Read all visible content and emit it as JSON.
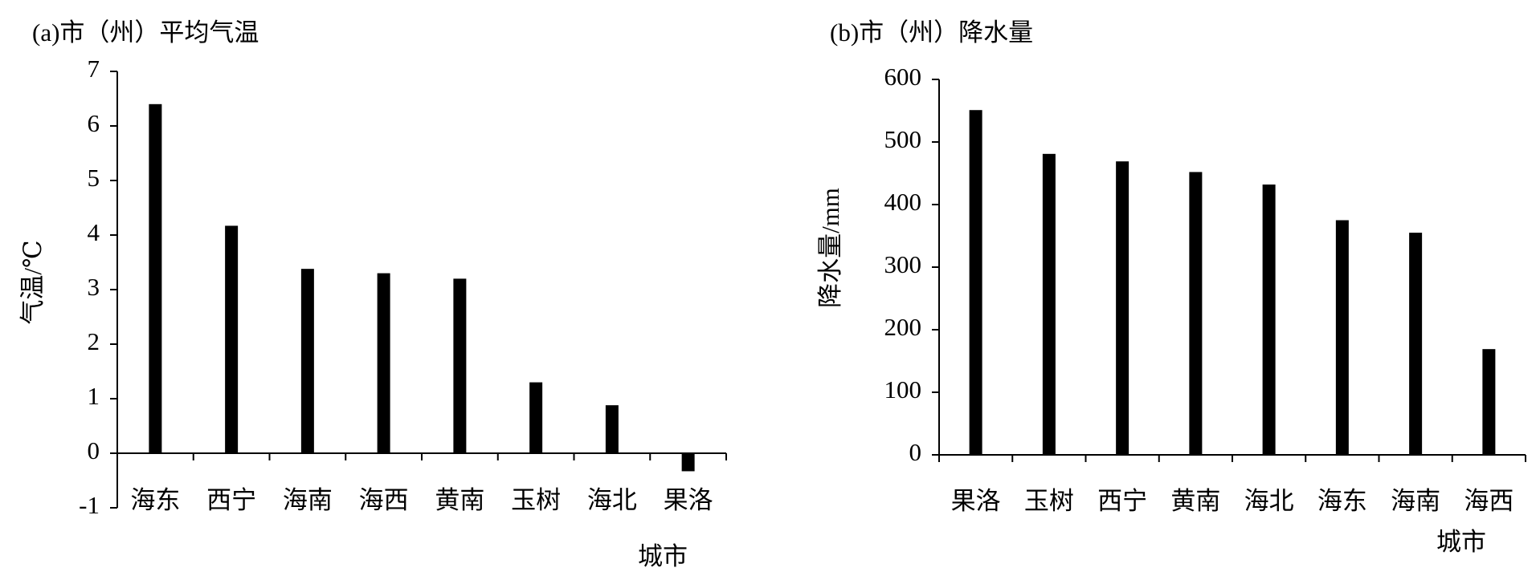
{
  "chart_data": [
    {
      "type": "bar",
      "title": "(a)市（州）平均气温",
      "ylabel": "气温/℃",
      "xlabel": "城市",
      "categories": [
        "海东",
        "西宁",
        "海南",
        "海西",
        "黄南",
        "玉树",
        "海北",
        "果洛"
      ],
      "values": [
        6.4,
        4.17,
        3.38,
        3.3,
        3.2,
        1.3,
        0.88,
        -0.33
      ],
      "color": "#000000",
      "ylim": [
        -1,
        7
      ],
      "yticks": [
        -1,
        0,
        1,
        2,
        3,
        4,
        5,
        6,
        7
      ]
    },
    {
      "type": "bar",
      "title": "(b)市（州）降水量",
      "ylabel": "降水量/mm",
      "xlabel": "城市",
      "categories": [
        "果洛",
        "玉树",
        "西宁",
        "黄南",
        "海北",
        "海东",
        "海南",
        "海西"
      ],
      "values": [
        551,
        481,
        469,
        452,
        432,
        375,
        355,
        169
      ],
      "color": "#000000",
      "ylim": [
        0,
        600
      ],
      "yticks": [
        0,
        100,
        200,
        300,
        400,
        500,
        600
      ]
    }
  ]
}
